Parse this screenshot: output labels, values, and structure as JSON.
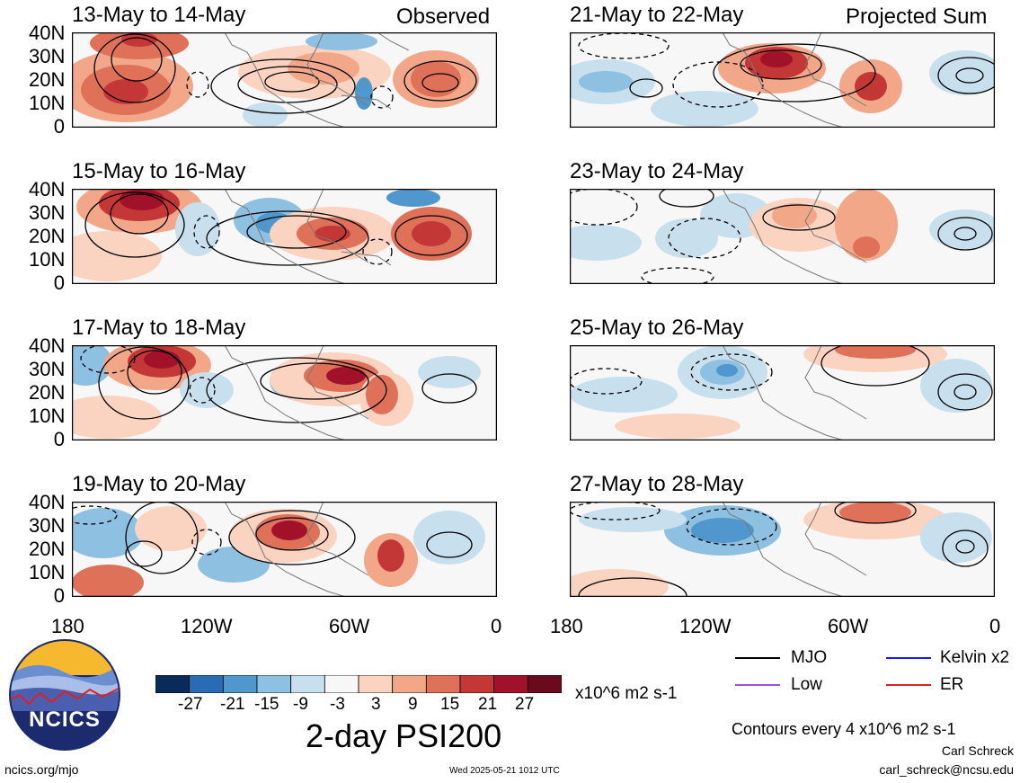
{
  "panels": [
    {
      "title": "13-May to 14-May",
      "corner": "Observed"
    },
    {
      "title": "15-May to 16-May",
      "corner": ""
    },
    {
      "title": "17-May to 18-May",
      "corner": ""
    },
    {
      "title": "19-May to 20-May",
      "corner": ""
    },
    {
      "title": "21-May to 22-May",
      "corner": "Projected Sum"
    },
    {
      "title": "23-May to 24-May",
      "corner": ""
    },
    {
      "title": "25-May to 26-May",
      "corner": ""
    },
    {
      "title": "27-May to 28-May",
      "corner": ""
    }
  ],
  "yaxis": [
    "40N",
    "30N",
    "20N",
    "10N",
    "0"
  ],
  "xaxis": [
    "180",
    "120W",
    "60W",
    "0"
  ],
  "colorbar": {
    "colors": [
      "#0a2a5a",
      "#2a6cb3",
      "#4f97cc",
      "#8ec0e2",
      "#c8dfee",
      "#f7f7f7",
      "#fad3c1",
      "#f2a888",
      "#df7158",
      "#c33836",
      "#a2112a",
      "#6a0a1c"
    ],
    "ticks": [
      "-27",
      "-21",
      "-15",
      "-9",
      "-3",
      "3",
      "9",
      "15",
      "21",
      "27"
    ],
    "units": "x10^6 m2 s-1"
  },
  "main_title": "2-day PSI200",
  "legend": [
    {
      "label": "MJO",
      "color": "#000000"
    },
    {
      "label": "Kelvin x2",
      "color": "#1a1aff"
    },
    {
      "label": "Low",
      "color": "#a050e0"
    },
    {
      "label": "ER",
      "color": "#e02020"
    }
  ],
  "contours_note": "Contours every 4 x10^6 m2 s-1",
  "author": "Carl Schreck",
  "email": "carl_schreck@ncsu.edu",
  "url": "ncics.org/mjo",
  "timestamp": "Wed 2025-05-21 1012 UTC",
  "logo_text": "NCICS"
}
